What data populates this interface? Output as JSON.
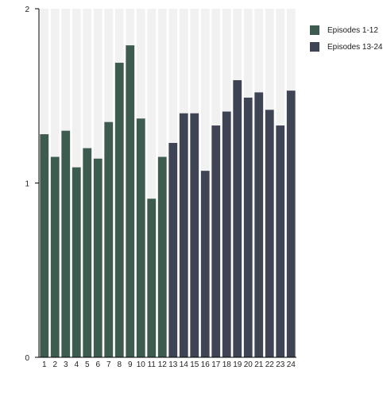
{
  "chart_data": {
    "type": "bar",
    "title": "",
    "xlabel": "",
    "ylabel": "",
    "ylim": [
      0,
      2
    ],
    "yticks": [
      "0",
      "1",
      "2"
    ],
    "categories": [
      "1",
      "2",
      "3",
      "4",
      "5",
      "6",
      "7",
      "8",
      "9",
      "10",
      "11",
      "12",
      "13",
      "14",
      "15",
      "16",
      "17",
      "18",
      "19",
      "20",
      "21",
      "22",
      "23",
      "24"
    ],
    "values": [
      1.28,
      1.15,
      1.3,
      1.09,
      1.2,
      1.14,
      1.35,
      1.69,
      1.79,
      1.37,
      0.91,
      1.15,
      1.23,
      1.4,
      1.4,
      1.07,
      1.33,
      1.41,
      1.59,
      1.49,
      1.52,
      1.42,
      1.33,
      1.53
    ],
    "series": [
      {
        "name": "Episodes 1-12",
        "color": "#3e5b4f",
        "range": [
          1,
          12
        ]
      },
      {
        "name": "Episodes 13-24",
        "color": "#3f4455",
        "range": [
          13,
          24
        ]
      }
    ],
    "legend_position": "top-right",
    "grid": false,
    "background_stripes": true
  }
}
